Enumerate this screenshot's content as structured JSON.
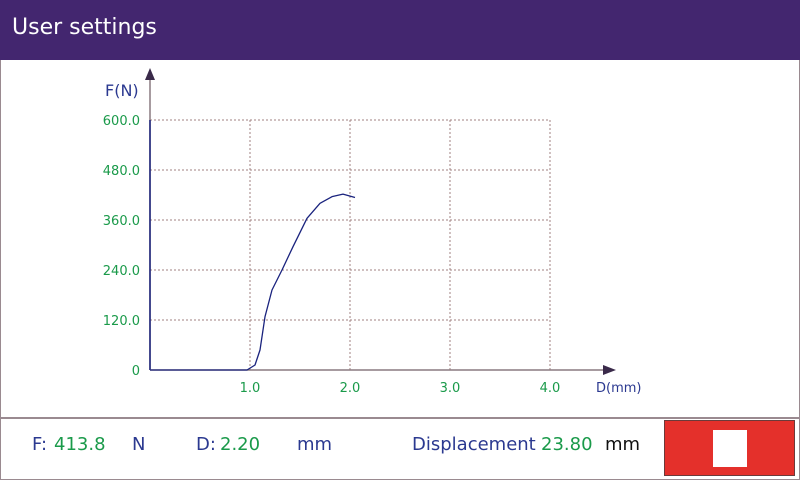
{
  "header": {
    "title": "User settings"
  },
  "chart_data": {
    "type": "line",
    "ylabel": "F(N)",
    "xlabel": "D(mm)",
    "xlim": [
      0,
      4.6
    ],
    "ylim": [
      0,
      600
    ],
    "x_ticks": [
      "1.0",
      "2.0",
      "3.0",
      "4.0"
    ],
    "y_ticks": [
      "0",
      "120.0",
      "240.0",
      "360.0",
      "480.0",
      "600.0"
    ],
    "grid": true,
    "series": [
      {
        "x": [
          0,
          0.97,
          1.05,
          1.1,
          1.15,
          1.22,
          1.32,
          1.43,
          1.57,
          1.7,
          1.82,
          1.93,
          2.05
        ],
        "y": [
          0,
          0,
          12,
          48,
          128,
          192,
          240,
          296,
          364,
          400,
          416,
          422,
          414
        ],
        "color": "#1a237e"
      }
    ]
  },
  "status": {
    "force_label": "F:",
    "force_value": "413.8",
    "force_unit": "N",
    "disp_label": "D:",
    "disp_value": "2.20",
    "disp_unit": "mm",
    "total_label": "Displacement",
    "total_value": "23.80",
    "total_unit": "mm"
  },
  "stop_button": {
    "icon": "stop-icon",
    "color": "#e4302b"
  }
}
